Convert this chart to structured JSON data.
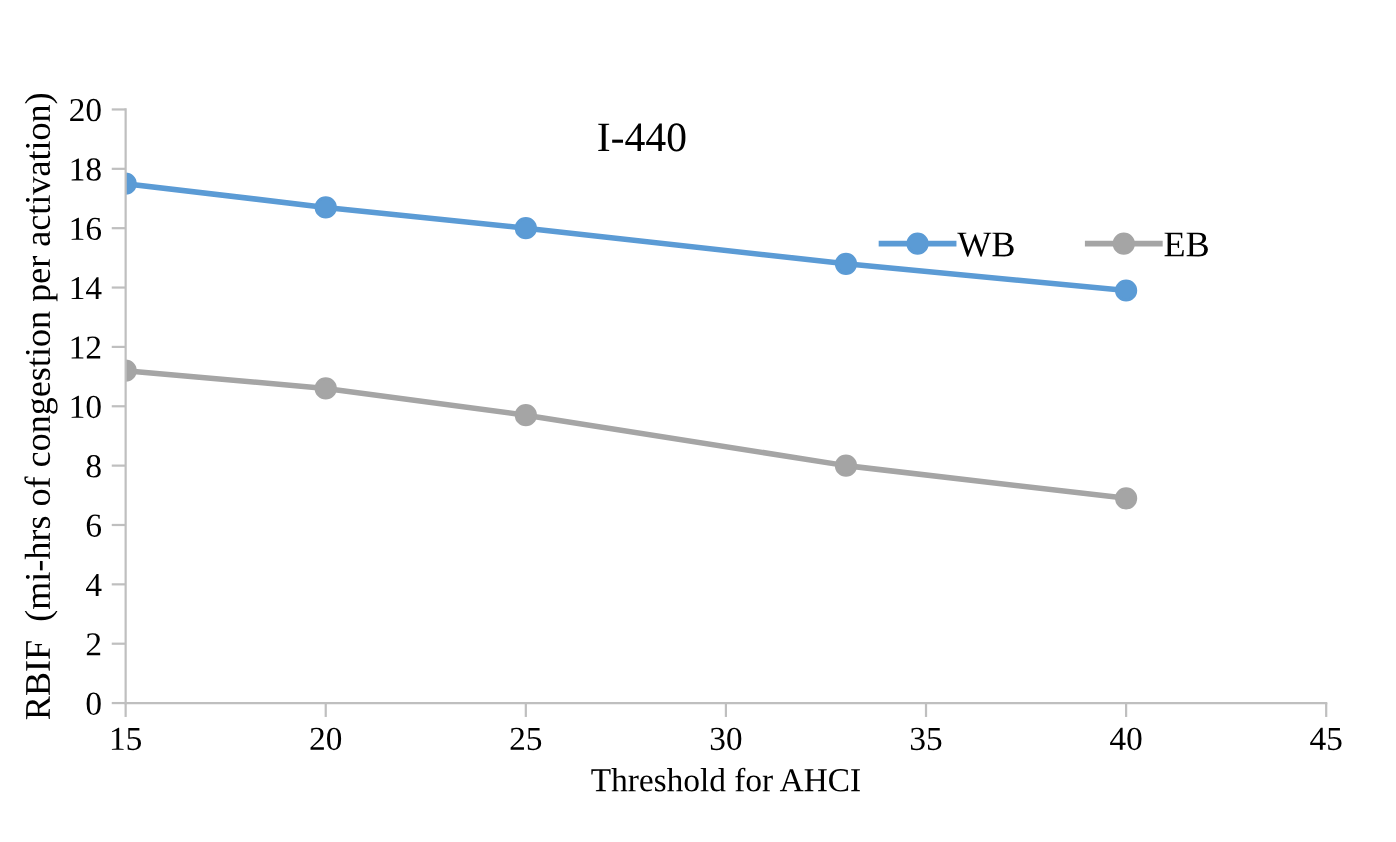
{
  "chart_data": {
    "type": "line",
    "title": "I-440",
    "xlabel": "Threshold for AHCI",
    "ylabel": "RBIF  (mi-hrs of congestion per activation)",
    "x": [
      15,
      20,
      25,
      33,
      40
    ],
    "series": [
      {
        "name": "WB",
        "color": "#5b9bd5",
        "values": [
          17.5,
          16.7,
          16.0,
          14.8,
          13.9
        ]
      },
      {
        "name": "EB",
        "color": "#a5a5a5",
        "values": [
          11.2,
          10.6,
          9.7,
          8.0,
          6.9
        ]
      }
    ],
    "xlim": [
      15,
      45
    ],
    "xticks": [
      15,
      20,
      25,
      30,
      35,
      40,
      45
    ],
    "ylim": [
      0,
      20
    ],
    "yticks": [
      0,
      2,
      4,
      6,
      8,
      10,
      12,
      14,
      16,
      18,
      20
    ],
    "grid": false,
    "legend": "top right",
    "marker": "circle",
    "line_style": "solid"
  }
}
